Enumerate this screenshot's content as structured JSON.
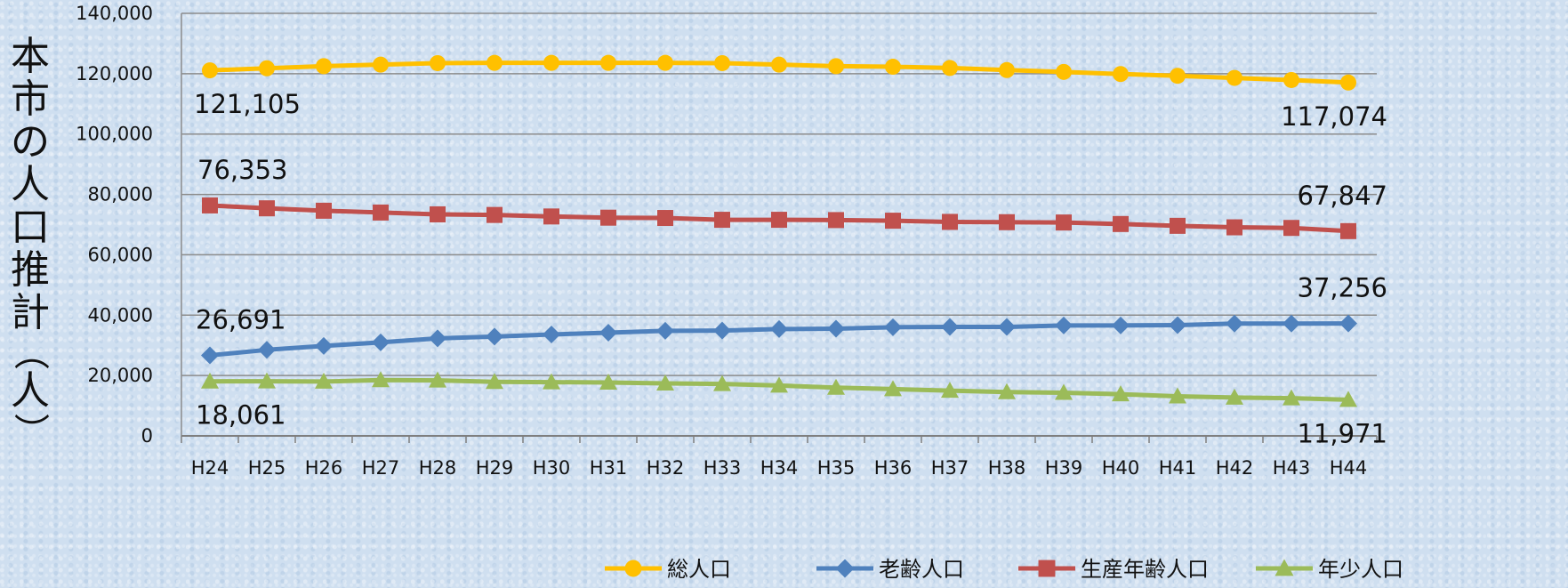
{
  "chart_data": {
    "type": "line",
    "ylabel_chars": [
      "本",
      "市",
      "の",
      "人",
      "口",
      "推",
      "計",
      "（",
      "人",
      "）"
    ],
    "ylim": [
      0,
      140000
    ],
    "yticks": [
      0,
      20000,
      40000,
      60000,
      80000,
      100000,
      120000,
      140000
    ],
    "ytick_labels": [
      "0",
      "20,000",
      "40,000",
      "60,000",
      "80,000",
      "100,000",
      "120,000",
      "140,000"
    ],
    "categories": [
      "H24",
      "H25",
      "H26",
      "H27",
      "H28",
      "H29",
      "H30",
      "H31",
      "H32",
      "H33",
      "H34",
      "H35",
      "H36",
      "H37",
      "H38",
      "H39",
      "H40",
      "H41",
      "H42",
      "H43",
      "H44"
    ],
    "grid": true,
    "legend_position": "bottom-right",
    "series": [
      {
        "name": "総人口",
        "color": "#ffc000",
        "marker": "circle",
        "values": [
          121105,
          121800,
          122500,
          123000,
          123500,
          123600,
          123600,
          123600,
          123600,
          123500,
          123000,
          122500,
          122300,
          121900,
          121200,
          120600,
          119900,
          119300,
          118600,
          117900,
          117074
        ],
        "first_label": "121,105",
        "last_label": "117,074"
      },
      {
        "name": "老齢人口",
        "color": "#4f81bd",
        "marker": "diamond",
        "values": [
          26691,
          28500,
          29800,
          31000,
          32300,
          32900,
          33600,
          34200,
          34800,
          34900,
          35400,
          35500,
          36000,
          36100,
          36100,
          36600,
          36600,
          36700,
          37200,
          37200,
          37256
        ],
        "first_label": "26,691",
        "last_label": "37,256"
      },
      {
        "name": "生産年齢人口",
        "color": "#c0504d",
        "marker": "square",
        "values": [
          76353,
          75400,
          74600,
          74000,
          73400,
          73200,
          72700,
          72300,
          72200,
          71600,
          71600,
          71500,
          71300,
          70900,
          70800,
          70700,
          70200,
          69600,
          69100,
          68900,
          67847
        ],
        "first_label": "76,353",
        "last_label": "67,847"
      },
      {
        "name": "年少人口",
        "color": "#9bbb59",
        "marker": "triangle",
        "values": [
          18061,
          18100,
          18000,
          18500,
          18400,
          17900,
          17800,
          17700,
          17400,
          17200,
          16700,
          16000,
          15500,
          15000,
          14500,
          14300,
          13800,
          13100,
          12700,
          12500,
          11971
        ],
        "first_label": "18,061",
        "last_label": "11,971"
      }
    ]
  }
}
